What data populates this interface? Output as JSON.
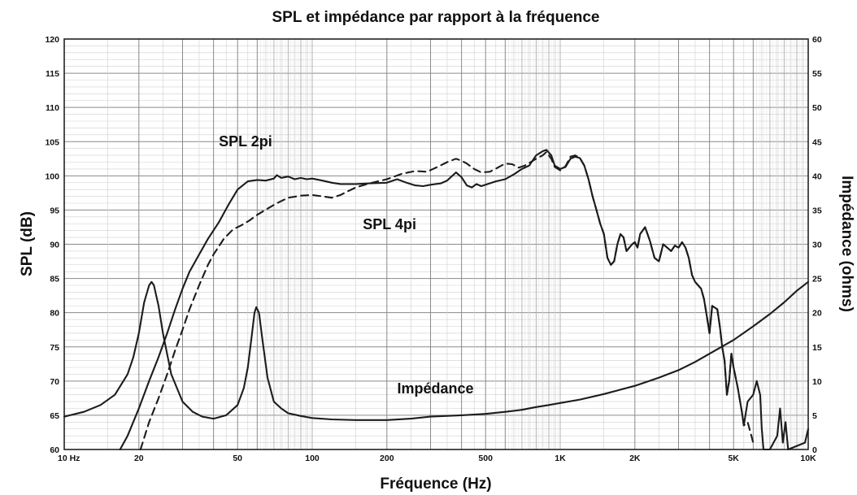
{
  "chart_data": {
    "type": "line",
    "title": "SPL et impédance par rapport à la fréquence",
    "xlabel": "Fréquence (Hz)",
    "ylabel": "SPL (dB)",
    "y2label": "Impédance (ohms)",
    "x_scale": "log",
    "xlim": [
      10,
      10000
    ],
    "ylim": [
      60,
      120
    ],
    "y2lim": [
      0,
      60
    ],
    "grid": true,
    "legend": "none (inline curve labels)",
    "x_ticks": [
      {
        "value": 10,
        "label": "10  Hz"
      },
      {
        "value": 20,
        "label": "20"
      },
      {
        "value": 50,
        "label": "50"
      },
      {
        "value": 100,
        "label": "100"
      },
      {
        "value": 200,
        "label": "200"
      },
      {
        "value": 500,
        "label": "500"
      },
      {
        "value": 1000,
        "label": "1K"
      },
      {
        "value": 2000,
        "label": "2K"
      },
      {
        "value": 5000,
        "label": "5K"
      },
      {
        "value": 10000,
        "label": "10K"
      }
    ],
    "y_ticks": [
      "60",
      "65",
      "70",
      "75",
      "80",
      "85",
      "90",
      "95",
      "100",
      "105",
      "110",
      "115",
      "120"
    ],
    "y2_ticks": [
      "0",
      "5",
      "10",
      "15",
      "20",
      "25",
      "30",
      "35",
      "40",
      "45",
      "50",
      "55",
      "60"
    ],
    "series": [
      {
        "name": "SPL 2pi",
        "axis": "left",
        "style": "solid",
        "label_at": {
          "x": 42,
          "y": 104.3
        },
        "points": [
          [
            16.8,
            60
          ],
          [
            18,
            62
          ],
          [
            20,
            66
          ],
          [
            22,
            70
          ],
          [
            24,
            73.5
          ],
          [
            26,
            77
          ],
          [
            28,
            80.5
          ],
          [
            30,
            83.5
          ],
          [
            32,
            86
          ],
          [
            35,
            88.5
          ],
          [
            38,
            90.8
          ],
          [
            42,
            93.2
          ],
          [
            46,
            95.8
          ],
          [
            50,
            98
          ],
          [
            55,
            99.2
          ],
          [
            60,
            99.4
          ],
          [
            65,
            99.3
          ],
          [
            70,
            99.6
          ],
          [
            72,
            100.1
          ],
          [
            75,
            99.7
          ],
          [
            80,
            99.9
          ],
          [
            85,
            99.5
          ],
          [
            90,
            99.7
          ],
          [
            95,
            99.5
          ],
          [
            100,
            99.6
          ],
          [
            110,
            99.3
          ],
          [
            120,
            99
          ],
          [
            130,
            98.8
          ],
          [
            150,
            98.8
          ],
          [
            170,
            98.9
          ],
          [
            200,
            99
          ],
          [
            220,
            99.5
          ],
          [
            240,
            99
          ],
          [
            260,
            98.6
          ],
          [
            280,
            98.5
          ],
          [
            300,
            98.7
          ],
          [
            330,
            98.9
          ],
          [
            350,
            99.3
          ],
          [
            380,
            100.5
          ],
          [
            400,
            99.8
          ],
          [
            420,
            98.6
          ],
          [
            440,
            98.3
          ],
          [
            460,
            98.8
          ],
          [
            480,
            98.5
          ],
          [
            500,
            98.7
          ],
          [
            550,
            99.2
          ],
          [
            600,
            99.5
          ],
          [
            650,
            100.2
          ],
          [
            700,
            101
          ],
          [
            750,
            101.5
          ],
          [
            800,
            103
          ],
          [
            850,
            103.6
          ],
          [
            880,
            103.8
          ],
          [
            920,
            103
          ],
          [
            950,
            101.5
          ],
          [
            1000,
            101
          ],
          [
            1050,
            101.3
          ],
          [
            1100,
            102.5
          ],
          [
            1150,
            102.8
          ],
          [
            1200,
            102.6
          ],
          [
            1250,
            101.5
          ],
          [
            1300,
            99.5
          ],
          [
            1350,
            97
          ],
          [
            1400,
            95
          ],
          [
            1450,
            93
          ],
          [
            1500,
            91.5
          ],
          [
            1550,
            88
          ],
          [
            1600,
            87
          ],
          [
            1650,
            87.5
          ],
          [
            1700,
            90
          ],
          [
            1750,
            91.5
          ],
          [
            1800,
            91
          ],
          [
            1850,
            89
          ],
          [
            1900,
            89.5
          ],
          [
            1950,
            90
          ],
          [
            2000,
            90.3
          ],
          [
            2050,
            89.5
          ],
          [
            2100,
            91.5
          ],
          [
            2200,
            92.5
          ],
          [
            2300,
            90.5
          ],
          [
            2400,
            88
          ],
          [
            2500,
            87.5
          ],
          [
            2600,
            90
          ],
          [
            2700,
            89.5
          ],
          [
            2800,
            89
          ],
          [
            2900,
            89.8
          ],
          [
            3000,
            89.5
          ],
          [
            3100,
            90.3
          ],
          [
            3200,
            89.5
          ],
          [
            3300,
            88
          ],
          [
            3400,
            85.5
          ],
          [
            3500,
            84.5
          ],
          [
            3700,
            83.5
          ],
          [
            3800,
            82
          ],
          [
            3900,
            79.5
          ],
          [
            4000,
            77
          ],
          [
            4100,
            81
          ],
          [
            4300,
            80.5
          ],
          [
            4400,
            78
          ],
          [
            4500,
            75
          ],
          [
            4600,
            73
          ],
          [
            4700,
            68
          ],
          [
            4800,
            70
          ],
          [
            4900,
            74
          ],
          [
            5000,
            72
          ],
          [
            5200,
            69
          ],
          [
            5400,
            65.5
          ],
          [
            5500,
            63.5
          ],
          [
            5700,
            67
          ],
          [
            6000,
            68
          ],
          [
            6200,
            70
          ],
          [
            6400,
            68
          ],
          [
            6500,
            63
          ],
          [
            6600,
            60
          ],
          [
            7000,
            60
          ],
          [
            7500,
            62
          ],
          [
            7700,
            66
          ],
          [
            7900,
            61
          ],
          [
            8100,
            64
          ],
          [
            8300,
            60
          ],
          [
            9700,
            61
          ],
          [
            10000,
            63
          ]
        ]
      },
      {
        "name": "SPL 4pi",
        "axis": "left",
        "style": "dashed",
        "label_at": {
          "x": 160,
          "y": 92.2
        },
        "points": [
          [
            20.3,
            60
          ],
          [
            22,
            64
          ],
          [
            24,
            67.5
          ],
          [
            26,
            71
          ],
          [
            28,
            74.5
          ],
          [
            30,
            77.5
          ],
          [
            32,
            80.5
          ],
          [
            35,
            84
          ],
          [
            38,
            87
          ],
          [
            40,
            88.5
          ],
          [
            44,
            90.8
          ],
          [
            48,
            92.2
          ],
          [
            52,
            92.8
          ],
          [
            56,
            93.5
          ],
          [
            60,
            94.3
          ],
          [
            66,
            95.2
          ],
          [
            72,
            96
          ],
          [
            80,
            96.8
          ],
          [
            90,
            97.1
          ],
          [
            100,
            97.2
          ],
          [
            110,
            97
          ],
          [
            120,
            96.8
          ],
          [
            130,
            97.2
          ],
          [
            140,
            97.8
          ],
          [
            150,
            98.3
          ],
          [
            170,
            98.9
          ],
          [
            200,
            99.5
          ],
          [
            230,
            100.3
          ],
          [
            260,
            100.7
          ],
          [
            290,
            100.6
          ],
          [
            320,
            101.3
          ],
          [
            350,
            102
          ],
          [
            380,
            102.5
          ],
          [
            400,
            102.2
          ],
          [
            420,
            101.8
          ],
          [
            450,
            101
          ],
          [
            480,
            100.5
          ],
          [
            520,
            100.6
          ],
          [
            560,
            101.2
          ],
          [
            600,
            101.8
          ],
          [
            640,
            101.7
          ],
          [
            680,
            101.2
          ],
          [
            720,
            101.5
          ],
          [
            760,
            102
          ],
          [
            800,
            102.5
          ],
          [
            850,
            103
          ],
          [
            880,
            103.5
          ],
          [
            920,
            102.5
          ],
          [
            950,
            101.3
          ],
          [
            1000,
            100.8
          ],
          [
            1050,
            101.4
          ],
          [
            1100,
            102.8
          ],
          [
            1150,
            103
          ],
          [
            1200,
            102.6
          ],
          [
            1250,
            101.5
          ],
          [
            1300,
            99.5
          ],
          [
            1350,
            97
          ],
          [
            1400,
            95
          ],
          [
            1450,
            93
          ],
          [
            1500,
            91.5
          ],
          [
            1550,
            88
          ],
          [
            1600,
            87
          ],
          [
            1650,
            87.5
          ],
          [
            1700,
            90
          ],
          [
            1750,
            91.5
          ],
          [
            1800,
            91
          ],
          [
            1850,
            89
          ],
          [
            1900,
            89.5
          ],
          [
            1950,
            90
          ],
          [
            2000,
            90.3
          ],
          [
            2050,
            89.5
          ],
          [
            2100,
            91.5
          ],
          [
            2200,
            92.5
          ],
          [
            2300,
            90.5
          ],
          [
            2400,
            88
          ],
          [
            2500,
            87.5
          ],
          [
            2600,
            90
          ],
          [
            2700,
            89.5
          ],
          [
            2800,
            89
          ],
          [
            2900,
            89.8
          ],
          [
            3000,
            89.5
          ],
          [
            3100,
            90.3
          ],
          [
            3200,
            89.5
          ],
          [
            3300,
            88
          ],
          [
            3400,
            85.5
          ],
          [
            3500,
            84.5
          ],
          [
            3700,
            83.5
          ],
          [
            3800,
            82
          ],
          [
            3900,
            79.5
          ],
          [
            4000,
            77
          ],
          [
            4100,
            81
          ],
          [
            4300,
            80.5
          ],
          [
            4400,
            78
          ],
          [
            4500,
            75
          ],
          [
            4600,
            73
          ],
          [
            4700,
            68
          ],
          [
            4800,
            70
          ],
          [
            4900,
            74
          ],
          [
            5000,
            72
          ],
          [
            5200,
            69
          ],
          [
            5400,
            65.5
          ],
          [
            5500,
            63.5
          ],
          [
            5700,
            64
          ],
          [
            5900,
            62
          ],
          [
            6000,
            61
          ]
        ]
      },
      {
        "name": "Impédance",
        "axis": "right",
        "style": "solid",
        "label_at": {
          "x": 220,
          "y2": 8.2
        },
        "points": [
          [
            10,
            4.8
          ],
          [
            12,
            5.5
          ],
          [
            14,
            6.5
          ],
          [
            16,
            8
          ],
          [
            18,
            11
          ],
          [
            19,
            13.5
          ],
          [
            20,
            17
          ],
          [
            21,
            21.5
          ],
          [
            22,
            24
          ],
          [
            22.5,
            24.5
          ],
          [
            23,
            24
          ],
          [
            24,
            21
          ],
          [
            25,
            17
          ],
          [
            27,
            11
          ],
          [
            30,
            7
          ],
          [
            33,
            5.5
          ],
          [
            36,
            4.8
          ],
          [
            40,
            4.5
          ],
          [
            45,
            5
          ],
          [
            50,
            6.5
          ],
          [
            53,
            9
          ],
          [
            55,
            12
          ],
          [
            57,
            16.5
          ],
          [
            58.5,
            20
          ],
          [
            59.5,
            20.8
          ],
          [
            61,
            20
          ],
          [
            63,
            16
          ],
          [
            66,
            10.5
          ],
          [
            70,
            7
          ],
          [
            75,
            6
          ],
          [
            80,
            5.3
          ],
          [
            90,
            4.9
          ],
          [
            100,
            4.6
          ],
          [
            120,
            4.4
          ],
          [
            150,
            4.3
          ],
          [
            200,
            4.3
          ],
          [
            250,
            4.5
          ],
          [
            300,
            4.8
          ],
          [
            400,
            5
          ],
          [
            500,
            5.2
          ],
          [
            600,
            5.5
          ],
          [
            700,
            5.8
          ],
          [
            800,
            6.2
          ],
          [
            900,
            6.5
          ],
          [
            1000,
            6.8
          ],
          [
            1200,
            7.3
          ],
          [
            1500,
            8.1
          ],
          [
            2000,
            9.3
          ],
          [
            2500,
            10.5
          ],
          [
            3000,
            11.6
          ],
          [
            3500,
            12.8
          ],
          [
            4000,
            14
          ],
          [
            5000,
            16
          ],
          [
            6000,
            18
          ],
          [
            7000,
            19.8
          ],
          [
            8000,
            21.5
          ],
          [
            9000,
            23.2
          ],
          [
            10000,
            24.5
          ]
        ]
      }
    ]
  }
}
